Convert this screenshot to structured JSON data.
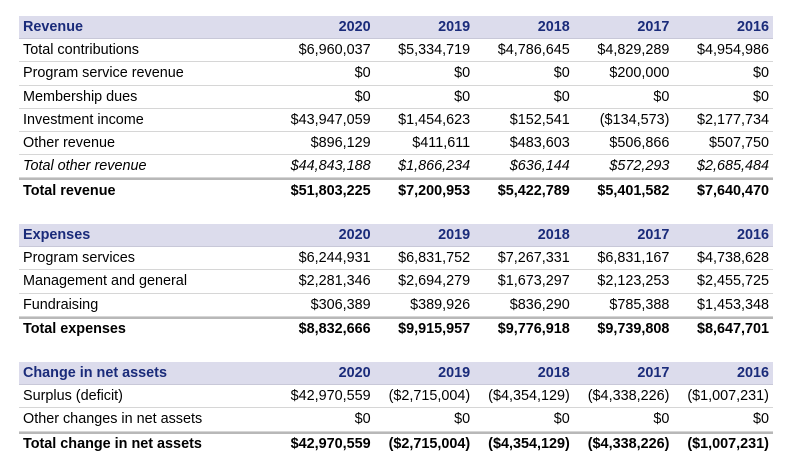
{
  "revenue": {
    "header": [
      "Revenue",
      "2020",
      "2019",
      "2018",
      "2017",
      "2016"
    ],
    "rows": [
      [
        "Total contributions",
        "$6,960,037",
        "$5,334,719",
        "$4,786,645",
        "$4,829,289",
        "$4,954,986"
      ],
      [
        "Program service revenue",
        "$0",
        "$0",
        "$0",
        "$200,000",
        "$0"
      ],
      [
        "Membership dues",
        "$0",
        "$0",
        "$0",
        "$0",
        "$0"
      ],
      [
        "Investment income",
        "$43,947,059",
        "$1,454,623",
        "$152,541",
        "($134,573)",
        "$2,177,734"
      ],
      [
        "Other revenue",
        "$896,129",
        "$411,611",
        "$483,603",
        "$506,866",
        "$507,750"
      ],
      [
        "Total other revenue",
        "$44,843,188",
        "$1,866,234",
        "$636,144",
        "$572,293",
        "$2,685,484"
      ],
      [
        "Total revenue",
        "$51,803,225",
        "$7,200,953",
        "$5,422,789",
        "$5,401,582",
        "$7,640,470"
      ]
    ]
  },
  "expenses": {
    "header": [
      "Expenses",
      "2020",
      "2019",
      "2018",
      "2017",
      "2016"
    ],
    "rows": [
      [
        "Program services",
        "$6,244,931",
        "$6,831,752",
        "$7,267,331",
        "$6,831,167",
        "$4,738,628"
      ],
      [
        "Management and general",
        "$2,281,346",
        "$2,694,279",
        "$1,673,297",
        "$2,123,253",
        "$2,455,725"
      ],
      [
        "Fundraising",
        "$306,389",
        "$389,926",
        "$836,290",
        "$785,388",
        "$1,453,348"
      ],
      [
        "Total expenses",
        "$8,832,666",
        "$9,915,957",
        "$9,776,918",
        "$9,739,808",
        "$8,647,701"
      ]
    ]
  },
  "change": {
    "header": [
      "Change in net assets",
      "2020",
      "2019",
      "2018",
      "2017",
      "2016"
    ],
    "rows": [
      [
        "Surplus (deficit)",
        "$42,970,559",
        "($2,715,004)",
        "($4,354,129)",
        "($4,338,226)",
        "($1,007,231)"
      ],
      [
        "Other changes in net assets",
        "$0",
        "$0",
        "$0",
        "$0",
        "$0"
      ],
      [
        "Total change in net assets",
        "$42,970,559",
        "($2,715,004)",
        "($4,354,129)",
        "($4,338,226)",
        "($1,007,231)"
      ]
    ]
  }
}
